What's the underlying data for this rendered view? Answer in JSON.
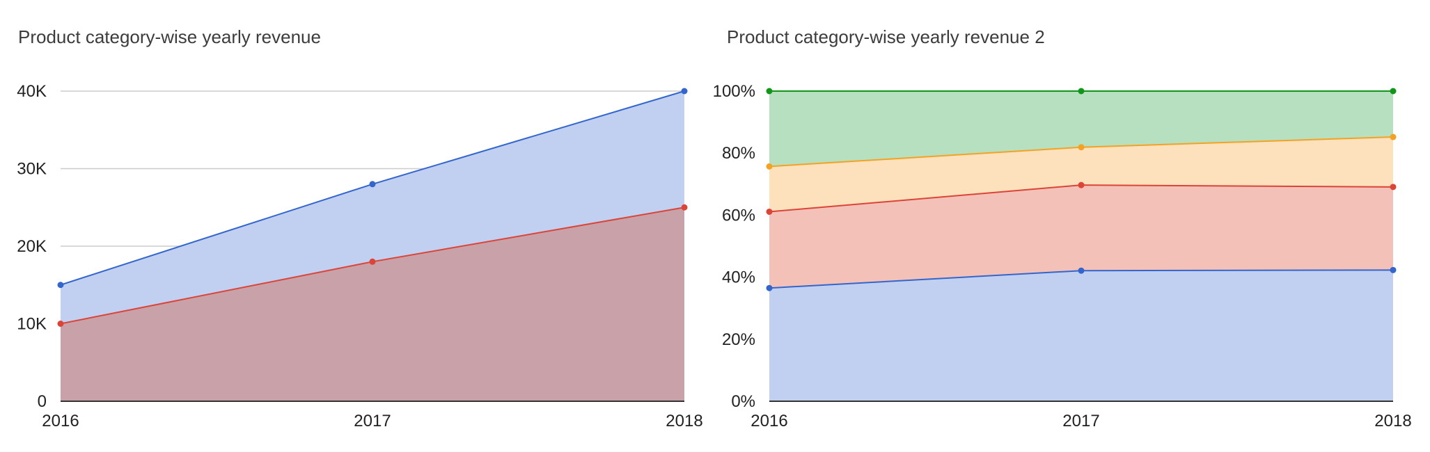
{
  "chart_data": [
    {
      "type": "area",
      "stacked": true,
      "title": "Product category-wise yearly revenue",
      "categories": [
        "2016",
        "2017",
        "2018"
      ],
      "series": [
        {
          "values": [
            10000,
            18000,
            25000
          ],
          "color": "#db4437",
          "fill": "#c9a1a9"
        },
        {
          "values": [
            5000,
            10000,
            15000
          ],
          "color": "#3366cc",
          "fill": "#c1cff1"
        }
      ],
      "y_ticks": [
        "0",
        "10K",
        "20K",
        "30K",
        "40K"
      ],
      "ylim": [
        0,
        40000
      ],
      "grid": true,
      "legend": "none"
    },
    {
      "type": "area",
      "stacked": "percent",
      "title": "Product category-wise yearly revenue 2",
      "categories": [
        "2016",
        "2017",
        "2018"
      ],
      "series": [
        {
          "values": [
            36.5,
            42.1,
            42.3
          ],
          "color": "#3366cc",
          "fill": "#c1cff1"
        },
        {
          "values": [
            24.6,
            27.6,
            26.8
          ],
          "color": "#db4437",
          "fill": "#f4c1b9"
        },
        {
          "values": [
            14.6,
            12.2,
            16.1
          ],
          "color": "#f3a223",
          "fill": "#fde0bc"
        },
        {
          "values": [
            24.3,
            18.1,
            14.8
          ],
          "color": "#109618",
          "fill": "#b6e0bf"
        }
      ],
      "y_ticks": [
        "0%",
        "20%",
        "40%",
        "60%",
        "80%",
        "100%"
      ],
      "ylim": [
        0,
        100
      ],
      "grid": true,
      "legend": "none"
    }
  ]
}
